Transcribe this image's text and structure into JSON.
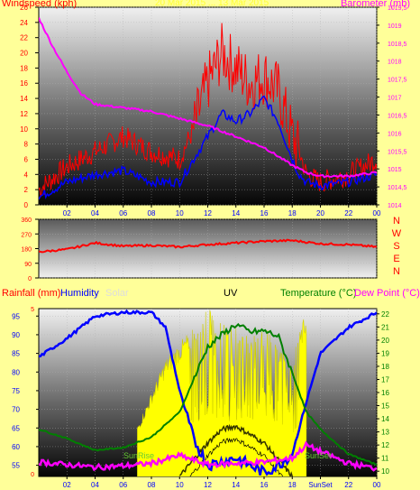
{
  "chart_data": [
    {
      "type": "line",
      "title": "20 Mar 2015 ... 13 Mar 2015",
      "left_axis_label": "Windspeed (kph)",
      "right_axis_label": "Barometer (mb)",
      "x_ticks": [
        "02",
        "04",
        "06",
        "08",
        "10",
        "12",
        "14",
        "16",
        "18",
        "20",
        "22",
        "00"
      ],
      "ylim_left": [
        0,
        26
      ],
      "y_ticks_left": [
        "0",
        "2",
        "4",
        "6",
        "8",
        "10",
        "12",
        "14",
        "16",
        "18",
        "20",
        "22",
        "24",
        "26"
      ],
      "ylim_right": [
        1014,
        1019.5
      ],
      "y_ticks_right": [
        "1014",
        "1014,5",
        "1015",
        "1015,5",
        "1016",
        "1016,5",
        "1017",
        "1017,5",
        "1018",
        "1018,5",
        "1019",
        "1019,5"
      ],
      "series": [
        {
          "name": "Windspeed (kph)",
          "color": "#ff0000",
          "x": [
            0,
            2,
            4,
            6,
            8,
            10,
            11,
            12,
            13,
            14,
            15,
            16,
            17,
            18,
            18.5,
            19,
            20,
            22,
            24
          ],
          "y": [
            2,
            5,
            7,
            9,
            7,
            6,
            10,
            16,
            20,
            18,
            16,
            17,
            15,
            9,
            7,
            4,
            3,
            4,
            6
          ]
        },
        {
          "name": "",
          "color": "#0000ff",
          "x": [
            0,
            1,
            2,
            4,
            6,
            8,
            10,
            11,
            12,
            13,
            14,
            15,
            16,
            17,
            18,
            18.5,
            19,
            20,
            22,
            24
          ],
          "y": [
            1,
            2,
            3,
            4,
            4.5,
            3,
            3,
            6,
            9,
            12,
            11,
            12,
            14,
            11,
            6,
            4,
            3,
            2.5,
            3,
            4
          ]
        },
        {
          "name": "Barometer (mb)",
          "color": "#ff00ff",
          "x": [
            0,
            1,
            2,
            3,
            4,
            6,
            8,
            10,
            12,
            14,
            16,
            18,
            19,
            20,
            22,
            24
          ],
          "y": [
            1019.2,
            1018.4,
            1017.7,
            1017.1,
            1016.8,
            1016.7,
            1016.6,
            1016.4,
            1016.2,
            1015.9,
            1015.6,
            1015.1,
            1014.9,
            1014.8,
            1014.8,
            1014.9
          ]
        }
      ]
    },
    {
      "type": "line",
      "ylim": [
        0,
        360
      ],
      "y_ticks": [
        "0",
        "90",
        "180",
        "270",
        "360"
      ],
      "direction_labels": [
        "N",
        "W",
        "S",
        "E",
        "N"
      ],
      "series": [
        {
          "name": "",
          "color": "#ff0000",
          "x": [
            0,
            2,
            4,
            6,
            8,
            10,
            12,
            14,
            16,
            18,
            20,
            22,
            24
          ],
          "y": [
            160,
            175,
            215,
            195,
            200,
            190,
            205,
            215,
            225,
            230,
            210,
            205,
            190
          ]
        }
      ]
    },
    {
      "type": "line",
      "left_axis_label": "Rainfall (mm)",
      "second_axis_label": "Humidity",
      "solar_label": "Solar",
      "uv_label": "UV",
      "right_axis_label": "Temperature (°C)",
      "right_axis_label_2": "Dew Point (°C)",
      "sunrise_label": "SunRise",
      "sunset_label": "SunSet",
      "x_ticks": [
        "02",
        "04",
        "06",
        "08",
        "10",
        "12",
        "14",
        "16",
        "18",
        "SunSet",
        "22",
        "00"
      ],
      "y_ticks_rain": [
        "0",
        "5"
      ],
      "y_ticks_humidity": [
        "55",
        "60",
        "65",
        "70",
        "75",
        "80",
        "85",
        "90",
        "95"
      ],
      "y_ticks_temp": [
        "10",
        "11",
        "12",
        "13",
        "14",
        "15",
        "16",
        "17",
        "18",
        "19",
        "20",
        "21",
        "22"
      ],
      "series": [
        {
          "name": "Humidity",
          "color": "#0000ff",
          "x": [
            0,
            2,
            4,
            6,
            8,
            9,
            10,
            11,
            12,
            13,
            14,
            15,
            16,
            17,
            18,
            19,
            20,
            22,
            24
          ],
          "y": [
            84,
            89,
            95,
            96,
            96,
            92,
            75,
            62,
            55,
            56,
            57,
            55,
            53,
            55,
            58,
            72,
            85,
            92,
            96
          ]
        },
        {
          "name": "Temperature (°C)",
          "color": "#008000",
          "x": [
            0,
            2,
            4,
            6,
            8,
            10,
            11,
            12,
            13,
            14,
            15,
            16,
            17,
            18,
            19,
            20,
            22,
            24
          ],
          "y": [
            13.2,
            12.5,
            11.6,
            11.8,
            12.6,
            14.5,
            17,
            19.5,
            20.4,
            21.2,
            20.6,
            20.7,
            20.3,
            17.5,
            14.5,
            13.2,
            11.3,
            10.5
          ]
        },
        {
          "name": "Dew Point (°C)",
          "color": "#ff00ff",
          "x": [
            0,
            2,
            4,
            6,
            8,
            10,
            12,
            14,
            16,
            18,
            19,
            20,
            22,
            24
          ],
          "y": [
            10.7,
            10.5,
            10.3,
            10.4,
            10.6,
            11.2,
            10.5,
            10.6,
            10.7,
            11,
            12,
            11.5,
            10.6,
            10.2
          ]
        },
        {
          "name": "Solar",
          "color": "#ffff00",
          "x": [
            7,
            8,
            9,
            10,
            11,
            12,
            13,
            14,
            15,
            16,
            17,
            18,
            19
          ],
          "y": [
            0.3,
            0.5,
            0.7,
            0.8,
            0.9,
            1,
            0.95,
            0.9,
            0.85,
            0.9,
            0.8,
            0.7,
            1
          ]
        },
        {
          "name": "UV",
          "color": "#333300",
          "x": [
            10,
            11,
            12,
            13,
            14,
            15,
            16,
            17,
            18
          ],
          "y": [
            0,
            0.1,
            0.2,
            0.28,
            0.3,
            0.25,
            0.2,
            0.1,
            0
          ]
        }
      ]
    }
  ]
}
